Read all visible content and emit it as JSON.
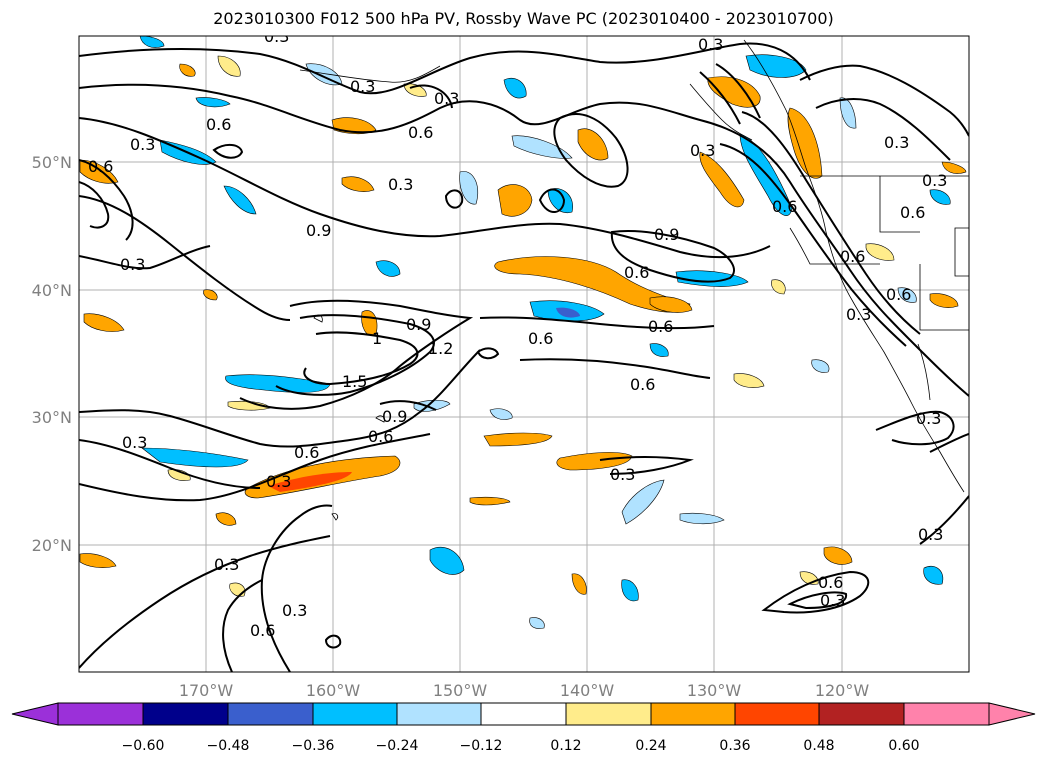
{
  "title": "2023010300 F012 500 hPa PV, Rossby Wave PC (2023010400 - 2023010700)",
  "map": {
    "lat_labels": [
      "50°N",
      "40°N",
      "30°N",
      "20°N"
    ],
    "lon_labels": [
      "170°W",
      "160°W",
      "150°W",
      "140°W",
      "130°W",
      "120°W"
    ],
    "contour_labels": [
      "0.3",
      "0.6",
      "0.9",
      "1.5",
      "1.2",
      "1"
    ]
  },
  "colorbar": {
    "ticks": [
      "−0.60",
      "−0.48",
      "−0.36",
      "−0.24",
      "−0.12",
      "0.12",
      "0.24",
      "0.36",
      "0.48",
      "0.60"
    ],
    "colors": [
      "#9b30d9",
      "#00008b",
      "#3a5fcd",
      "#00bfff",
      "#b0e2ff",
      "#ffffff",
      "#ffec8b",
      "#ffa500",
      "#ff4500",
      "#b22222",
      "#ff82ab"
    ]
  }
}
